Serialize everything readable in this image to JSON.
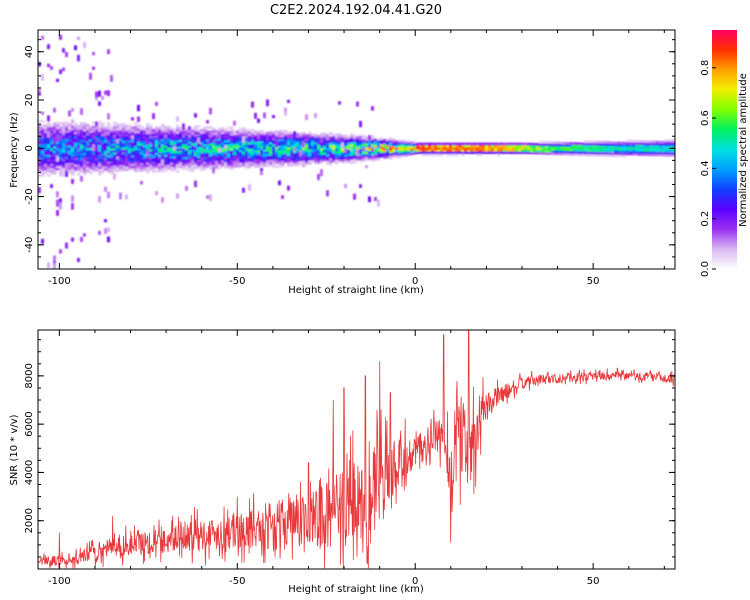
{
  "title": "C2E2.2024.192.04.41.G20",
  "chart_data": [
    {
      "type": "heatmap",
      "name": "spectrogram",
      "xlabel": "Height of straight line (km)",
      "ylabel": "Frequency (Hz)",
      "xlim": [
        -106,
        73
      ],
      "ylim": [
        -50,
        49
      ],
      "xticks": [
        -100,
        -50,
        0,
        50
      ],
      "xtick_labels": [
        "-100",
        "-50",
        "0",
        "50"
      ],
      "yticks": [
        -40,
        -20,
        0,
        20,
        40
      ],
      "ytick_labels": [
        "-40",
        "-20",
        "0",
        "20",
        "40"
      ],
      "colorbar": {
        "label": "Normalized spectral amplitude",
        "range": [
          0.0,
          0.95
        ],
        "ticks": [
          0.0,
          0.2,
          0.4,
          0.6,
          0.8
        ],
        "tick_labels": [
          "0.0",
          "0.2",
          "0.4",
          "0.6",
          "0.8"
        ],
        "colors": [
          "#ffffff",
          "#d9b8f0",
          "#9a30f0",
          "#5a00ff",
          "#1040ff",
          "#00a0ff",
          "#00e0e0",
          "#00f060",
          "#80ff00",
          "#f0f000",
          "#ffa000",
          "#ff3000",
          "#ff0060"
        ]
      },
      "band": {
        "description": "narrow band centred near 0 Hz; broad noisy spread at negative heights, narrowing to a sharp line above 0 km",
        "center_hz": 0,
        "width_hz_at_x": [
          [
            -100,
            10
          ],
          [
            -50,
            7
          ],
          [
            -20,
            5
          ],
          [
            0,
            2
          ],
          [
            30,
            2
          ],
          [
            73,
            3
          ]
        ],
        "peak_amplitude_at_x": [
          [
            -100,
            0.35
          ],
          [
            -50,
            0.45
          ],
          [
            -20,
            0.5
          ],
          [
            0,
            0.9
          ],
          [
            20,
            0.85
          ],
          [
            40,
            0.6
          ],
          [
            73,
            0.5
          ]
        ]
      }
    },
    {
      "type": "line",
      "name": "snr",
      "xlabel": "Height of straight line (km)",
      "ylabel": "SNR (10 * v/v)",
      "xlim": [
        -106,
        73
      ],
      "ylim": [
        0,
        9900
      ],
      "xticks": [
        -100,
        -50,
        0,
        50
      ],
      "xtick_labels": [
        "-100",
        "-50",
        "0",
        "50"
      ],
      "yticks": [
        2000,
        4000,
        6000,
        8000
      ],
      "ytick_labels": [
        "2000",
        "4000",
        "6000",
        "8000"
      ],
      "color": "#e8383a",
      "series": [
        {
          "name": "SNR",
          "x": [
            -106,
            -100,
            -95,
            -90,
            -85,
            -80,
            -75,
            -70,
            -65,
            -60,
            -55,
            -50,
            -45,
            -40,
            -35,
            -30,
            -25,
            -20,
            -15,
            -10,
            -5,
            0,
            5,
            8,
            10,
            12,
            15,
            18,
            20,
            25,
            30,
            35,
            40,
            50,
            60,
            65,
            70,
            73
          ],
          "mean": [
            300,
            350,
            400,
            700,
            900,
            1000,
            1100,
            1200,
            1350,
            1400,
            1500,
            1600,
            1700,
            1800,
            1900,
            2000,
            2200,
            2500,
            3000,
            3400,
            4000,
            4800,
            5400,
            5600,
            4000,
            5800,
            5000,
            6200,
            6800,
            7300,
            7700,
            7850,
            7900,
            8000,
            8000,
            7950,
            7900,
            7900
          ],
          "spread": [
            250,
            300,
            350,
            500,
            600,
            700,
            700,
            800,
            900,
            1000,
            1000,
            1100,
            1200,
            1400,
            1600,
            1800,
            2000,
            2400,
            2800,
            2500,
            2000,
            1000,
            900,
            1200,
            2500,
            2500,
            2500,
            1500,
            800,
            500,
            350,
            300,
            300,
            250,
            250,
            250,
            250,
            250
          ],
          "peaks": [
            [
              -100,
              1500
            ],
            [
              -85,
              2200
            ],
            [
              -50,
              3000
            ],
            [
              -30,
              4400
            ],
            [
              -23,
              7000
            ],
            [
              -20,
              7500
            ],
            [
              -14,
              8000
            ],
            [
              -10,
              8600
            ],
            [
              -7,
              7300
            ],
            [
              8,
              9700
            ],
            [
              10,
              1100
            ],
            [
              15,
              9900
            ],
            [
              17,
              3400
            ]
          ]
        }
      ]
    }
  ]
}
